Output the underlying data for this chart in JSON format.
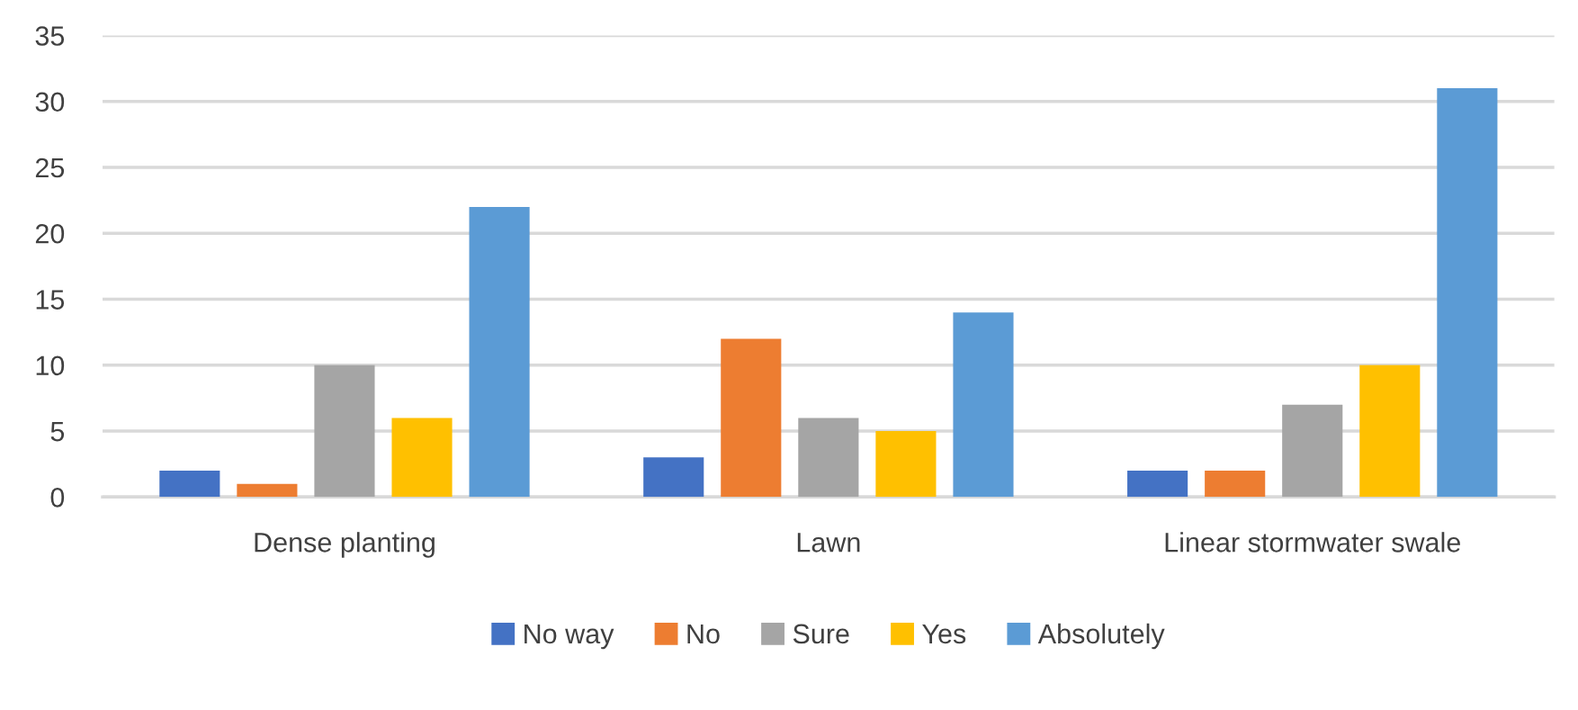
{
  "chart_data": {
    "type": "bar",
    "categories": [
      "Dense planting",
      "Lawn",
      "Linear stormwater swale"
    ],
    "series": [
      {
        "name": "No way",
        "color": "#4472c4",
        "values": [
          2,
          3,
          2
        ]
      },
      {
        "name": "No",
        "color": "#ed7d31",
        "values": [
          1,
          12,
          2
        ]
      },
      {
        "name": "Sure",
        "color": "#a5a5a5",
        "values": [
          10,
          6,
          7
        ]
      },
      {
        "name": "Yes",
        "color": "#ffc000",
        "values": [
          6,
          5,
          10
        ]
      },
      {
        "name": "Absolutely",
        "color": "#5b9bd5",
        "values": [
          22,
          14,
          31
        ]
      }
    ],
    "ylim": [
      0,
      35
    ],
    "yticks": [
      0,
      5,
      10,
      15,
      20,
      25,
      30,
      35
    ],
    "grid": "y",
    "legend": "bottom"
  }
}
